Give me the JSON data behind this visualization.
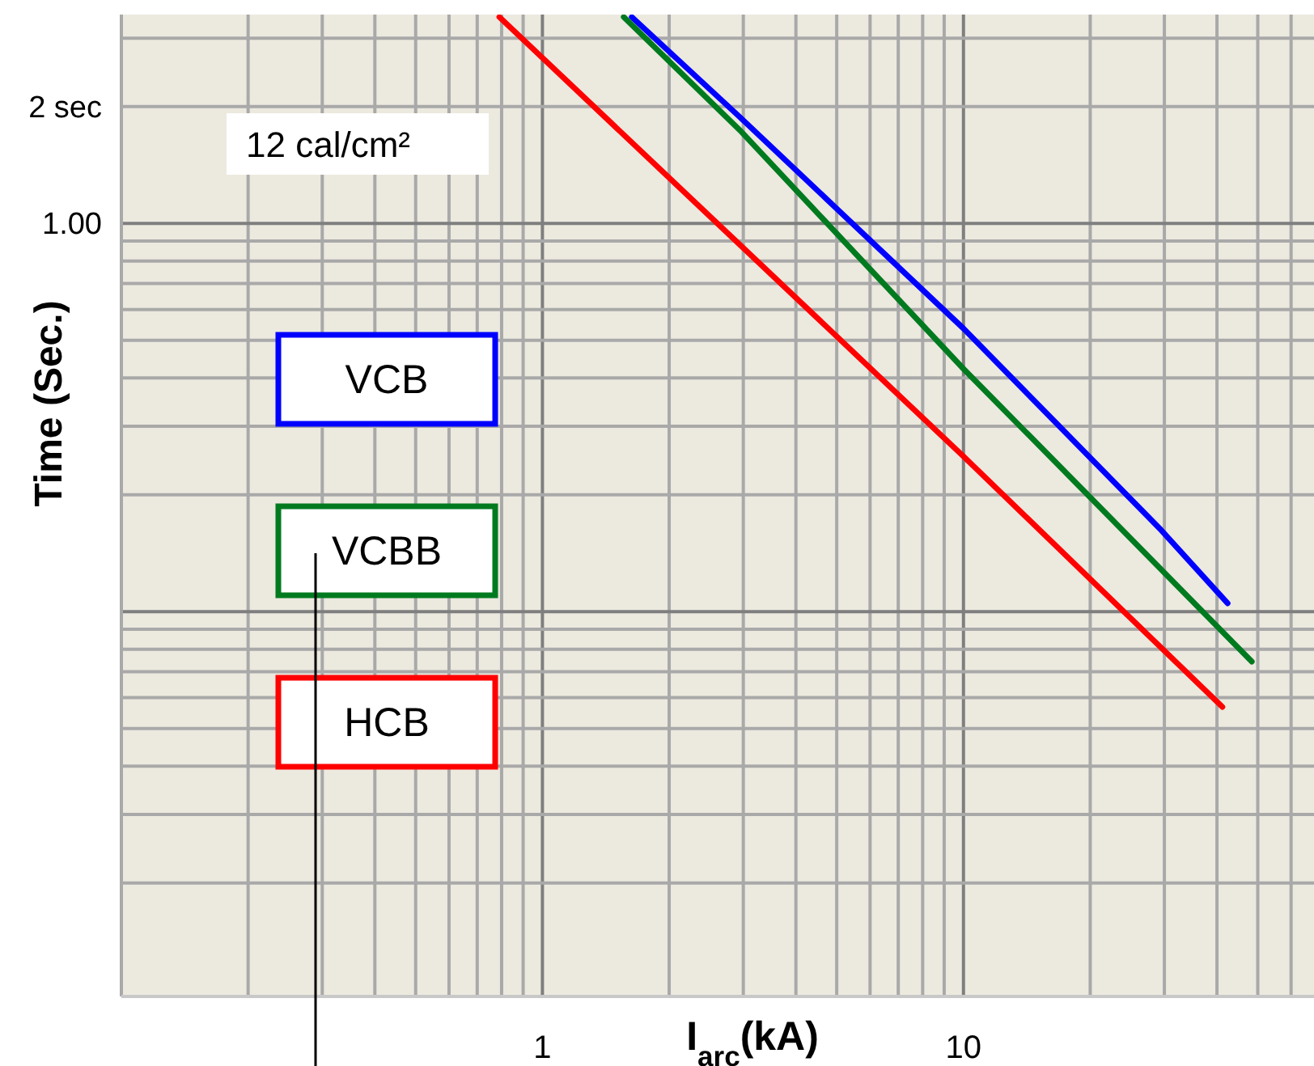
{
  "chart_data": {
    "type": "line",
    "xlabel": "I$_{arc}$(kA)",
    "ylabel": "Time (Sec.)",
    "log": "xy",
    "grid": true,
    "legend": "left",
    "line_style": "solid",
    "xlim": [
      0.1,
      68
    ],
    "ylim": [
      0.0102,
      3.45
    ],
    "xticks": [
      {
        "value": 0.2,
        "label": null
      },
      {
        "value": 0.3,
        "label": null
      },
      {
        "value": 0.4,
        "label": null
      },
      {
        "value": 0.5,
        "label": null
      },
      {
        "value": 0.6,
        "label": null
      },
      {
        "value": 0.7,
        "label": null
      },
      {
        "value": 0.8,
        "label": null
      },
      {
        "value": 0.9,
        "label": null
      },
      1,
      {
        "value": 2,
        "label": null
      },
      {
        "value": 3,
        "label": null
      },
      {
        "value": 4,
        "label": null
      },
      {
        "value": 5,
        "label": null
      },
      {
        "value": 6,
        "label": null
      },
      {
        "value": 7,
        "label": null
      },
      {
        "value": 8,
        "label": null
      },
      {
        "value": 9,
        "label": null
      },
      10,
      {
        "value": 20,
        "label": null
      },
      {
        "value": 30,
        "label": null
      },
      {
        "value": 40,
        "label": null
      },
      {
        "value": 50,
        "label": null
      },
      {
        "value": 60,
        "label": null
      }
    ],
    "yticks": [
      {
        "value": 0.02,
        "label": null
      },
      {
        "value": 0.03,
        "label": null
      },
      {
        "value": 0.04,
        "label": null
      },
      {
        "value": 0.05,
        "label": null
      },
      {
        "value": 0.06,
        "label": null
      },
      {
        "value": 0.07,
        "label": null
      },
      {
        "value": 0.08,
        "label": null
      },
      {
        "value": 0.09,
        "label": null
      },
      {
        "value": 0.1,
        "label": null
      },
      {
        "value": 0.2,
        "label": null
      },
      {
        "value": 0.3,
        "label": null
      },
      {
        "value": 0.4,
        "label": null
      },
      {
        "value": 0.5,
        "label": null
      },
      {
        "value": 0.6,
        "label": null
      },
      {
        "value": 0.7,
        "label": null
      },
      {
        "value": 0.8,
        "label": null
      },
      {
        "value": 0.9,
        "label": null
      },
      {
        "value": 1,
        "label": "1.00"
      },
      {
        "value": 2,
        "label": "2 sec"
      },
      {
        "value": 3,
        "label": null
      }
    ],
    "annotations": [
      "12 cal/cm²"
    ],
    "series": [
      {
        "name": "VCB",
        "color": "#0000ff",
        "x": [
          1.63,
          2.94,
          10,
          29.5,
          42.4
        ],
        "values": [
          3.4,
          1.88,
          0.536,
          0.162,
          0.105
        ]
      },
      {
        "name": "VCBB",
        "color": "#007a1f",
        "x": [
          1.56,
          2.94,
          10,
          19.9,
          48.4
        ],
        "values": [
          3.4,
          1.74,
          0.422,
          0.198,
          0.0743
        ]
      },
      {
        "name": "HCB",
        "color": "#ff0000",
        "x": [
          0.79,
          10,
          41.2
        ],
        "values": [
          3.4,
          0.251,
          0.0568
        ]
      }
    ]
  }
}
